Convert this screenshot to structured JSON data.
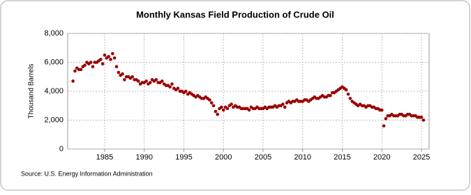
{
  "chart_data": {
    "type": "scatter",
    "title": "Monthly Kansas Field Production of Crude Oil",
    "y_label": "Thousand Barrels",
    "source": "Source: U.S. Energy Information Administration",
    "color": "#990000",
    "grid": true,
    "xlim": [
      1980.33,
      2025.97
    ],
    "ylim": [
      0,
      8000
    ],
    "xticks": [
      1985,
      1990,
      1995,
      2000,
      2005,
      2010,
      2015,
      2020,
      2025
    ],
    "yticks": [
      0,
      {
        "value": 2000,
        "label": "2,000"
      },
      {
        "value": 4000,
        "label": "4,000"
      },
      {
        "value": 6000,
        "label": "6,000"
      },
      {
        "value": 8000,
        "label": "8,000"
      }
    ],
    "x": [
      1981,
      1981.25,
      1981.5,
      1981.75,
      1982,
      1982.25,
      1982.5,
      1982.75,
      1983,
      1983.25,
      1983.5,
      1983.75,
      1984,
      1984.25,
      1984.5,
      1984.75,
      1985,
      1985.25,
      1985.5,
      1985.75,
      1986,
      1986.25,
      1986.5,
      1986.75,
      1987,
      1987.25,
      1987.5,
      1987.75,
      1988,
      1988.25,
      1988.5,
      1988.75,
      1989,
      1989.25,
      1989.5,
      1989.75,
      1990,
      1990.25,
      1990.5,
      1990.75,
      1991,
      1991.25,
      1991.5,
      1991.75,
      1992,
      1992.25,
      1992.5,
      1992.75,
      1993,
      1993.25,
      1993.5,
      1993.75,
      1994,
      1994.25,
      1994.5,
      1994.75,
      1995,
      1995.25,
      1995.5,
      1995.75,
      1996,
      1996.25,
      1996.5,
      1996.75,
      1997,
      1997.25,
      1997.5,
      1997.75,
      1998,
      1998.25,
      1998.5,
      1998.75,
      1999,
      1999.25,
      1999.5,
      1999.75,
      2000,
      2000.25,
      2000.5,
      2000.75,
      2001,
      2001.25,
      2001.5,
      2001.75,
      2002,
      2002.25,
      2002.5,
      2002.75,
      2003,
      2003.25,
      2003.5,
      2003.75,
      2004,
      2004.25,
      2004.5,
      2004.75,
      2005,
      2005.25,
      2005.5,
      2005.75,
      2006,
      2006.25,
      2006.5,
      2006.75,
      2007,
      2007.25,
      2007.5,
      2007.75,
      2008,
      2008.25,
      2008.5,
      2008.75,
      2009,
      2009.25,
      2009.5,
      2009.75,
      2010,
      2010.25,
      2010.5,
      2010.75,
      2011,
      2011.25,
      2011.5,
      2011.75,
      2012,
      2012.25,
      2012.5,
      2012.75,
      2013,
      2013.25,
      2013.5,
      2013.75,
      2014,
      2014.25,
      2014.5,
      2014.75,
      2015,
      2015.25,
      2015.5,
      2015.75,
      2016,
      2016.25,
      2016.5,
      2016.75,
      2017,
      2017.25,
      2017.5,
      2017.75,
      2018,
      2018.25,
      2018.5,
      2018.75,
      2019,
      2019.25,
      2019.5,
      2019.75,
      2020,
      2020.25,
      2020.5,
      2020.75,
      2021,
      2021.25,
      2021.5,
      2021.75,
      2022,
      2022.25,
      2022.5,
      2022.75,
      2023,
      2023.25,
      2023.5,
      2023.75,
      2024,
      2024.25,
      2024.5,
      2024.75,
      2025,
      2025.25
    ],
    "values": [
      4700,
      5400,
      5600,
      5500,
      5500,
      5700,
      5800,
      6000,
      5900,
      6000,
      5700,
      6000,
      6000,
      6100,
      6200,
      5900,
      6500,
      6300,
      6400,
      6200,
      6600,
      6300,
      5700,
      5300,
      5100,
      5200,
      4800,
      5000,
      5000,
      4900,
      5000,
      4800,
      4800,
      4700,
      4500,
      4600,
      4600,
      4700,
      4500,
      4600,
      4800,
      4700,
      4800,
      4600,
      4600,
      4700,
      4500,
      4400,
      4400,
      4300,
      4500,
      4200,
      4100,
      4200,
      4000,
      4000,
      3900,
      4000,
      3800,
      3900,
      3800,
      3700,
      3600,
      3700,
      3600,
      3500,
      3500,
      3600,
      3500,
      3400,
      3200,
      3000,
      2600,
      2400,
      2800,
      2900,
      2700,
      2900,
      2800,
      3000,
      3100,
      2900,
      3000,
      2900,
      2900,
      2800,
      2800,
      2800,
      2800,
      2700,
      2900,
      2800,
      2800,
      2900,
      2800,
      2800,
      2800,
      2900,
      2800,
      2900,
      2900,
      2900,
      3000,
      2900,
      3000,
      3000,
      3100,
      2900,
      3200,
      3300,
      3200,
      3300,
      3300,
      3400,
      3300,
      3300,
      3300,
      3400,
      3400,
      3300,
      3400,
      3500,
      3600,
      3500,
      3500,
      3600,
      3700,
      3600,
      3600,
      3700,
      3700,
      3900,
      3900,
      4000,
      4100,
      4200,
      4300,
      4200,
      4100,
      3800,
      3500,
      3300,
      3200,
      3100,
      3000,
      3100,
      3000,
      3000,
      2900,
      3000,
      3000,
      2900,
      2900,
      2800,
      2800,
      2700,
      2700,
      1600,
      2100,
      2300,
      2300,
      2400,
      2300,
      2300,
      2300,
      2400,
      2400,
      2300,
      2300,
      2400,
      2400,
      2300,
      2300,
      2300,
      2200,
      2200,
      2200,
      2000
    ]
  }
}
